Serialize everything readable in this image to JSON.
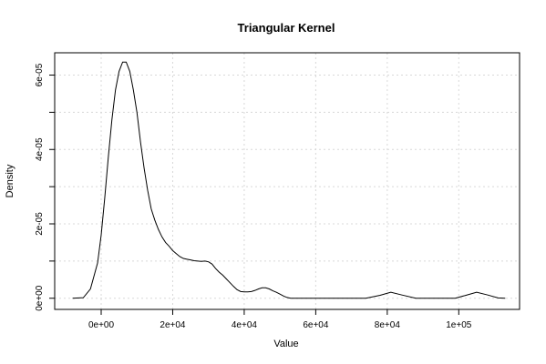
{
  "chart_data": {
    "type": "line",
    "title": "Triangular Kernel",
    "xlabel": "Value",
    "ylabel": "Density",
    "xlim": [
      -13000,
      117000
    ],
    "ylim": [
      -3e-06,
      6.6e-05
    ],
    "grid": true,
    "x_ticks": [
      {
        "value": 0,
        "label": "0e+00"
      },
      {
        "value": 20000,
        "label": "2e+04"
      },
      {
        "value": 40000,
        "label": "4e+04"
      },
      {
        "value": 60000,
        "label": "6e+04"
      },
      {
        "value": 80000,
        "label": "8e+04"
      },
      {
        "value": 100000,
        "label": "1e+05"
      }
    ],
    "y_ticks": [
      {
        "value": 0,
        "label": "0e+00"
      },
      {
        "value": 2e-05,
        "label": "2e-05"
      },
      {
        "value": 4e-05,
        "label": "4e-05"
      },
      {
        "value": 6e-05,
        "label": "6e-05"
      }
    ],
    "y_minor_ticks": [
      1e-05,
      3e-05,
      5e-05
    ],
    "series": [
      {
        "x": [
          -8000,
          -5000,
          -3000,
          -1000,
          0,
          1000,
          2000,
          3000,
          4000,
          5000,
          6000,
          7000,
          8000,
          9000,
          10000,
          11000,
          12000,
          13000,
          14000,
          15000,
          16000,
          17000,
          18000,
          19000,
          20000,
          21000,
          22000,
          23000,
          24000,
          25000,
          26000,
          27000,
          28000,
          29000,
          30000,
          31000,
          32000,
          33000,
          34000,
          35000,
          36000,
          37000,
          38000,
          39000,
          40000,
          41000,
          42000,
          43000,
          44000,
          45000,
          46000,
          47000,
          48000,
          49000,
          50000,
          51000,
          52000,
          53000,
          54000,
          56000,
          60000,
          70000,
          74000,
          78000,
          81000,
          84000,
          88000,
          92000,
          96000,
          99000,
          102000,
          105000,
          108000,
          111000,
          113000
        ],
        "y": [
          0,
          1.5e-07,
          2.5e-06,
          9.5e-06,
          1.7e-05,
          2.7e-05,
          3.8e-05,
          4.8e-05,
          5.6e-05,
          6.1e-05,
          6.35e-05,
          6.35e-05,
          6.1e-05,
          5.6e-05,
          5e-05,
          4.2e-05,
          3.5e-05,
          2.9e-05,
          2.4e-05,
          2.1e-05,
          1.85e-05,
          1.65e-05,
          1.5e-05,
          1.4e-05,
          1.28e-05,
          1.2e-05,
          1.12e-05,
          1.07e-05,
          1.05e-05,
          1.03e-05,
          1.01e-05,
          1e-05,
          9.9e-06,
          1e-05,
          9.8e-06,
          9.2e-06,
          8e-06,
          7e-06,
          6.2e-06,
          5.2e-06,
          4.2e-06,
          3.2e-06,
          2.3e-06,
          1.8e-06,
          1.7e-06,
          1.7e-06,
          1.8e-06,
          2.1e-06,
          2.5e-06,
          2.8e-06,
          2.8e-06,
          2.5e-06,
          2e-06,
          1.6e-06,
          1.1e-06,
          6e-07,
          2e-07,
          0,
          0,
          0,
          0,
          0,
          0,
          8e-07,
          1.6e-06,
          9e-07,
          0,
          0,
          0,
          0,
          8e-07,
          1.6e-06,
          9e-07,
          1e-07,
          0
        ]
      }
    ]
  }
}
